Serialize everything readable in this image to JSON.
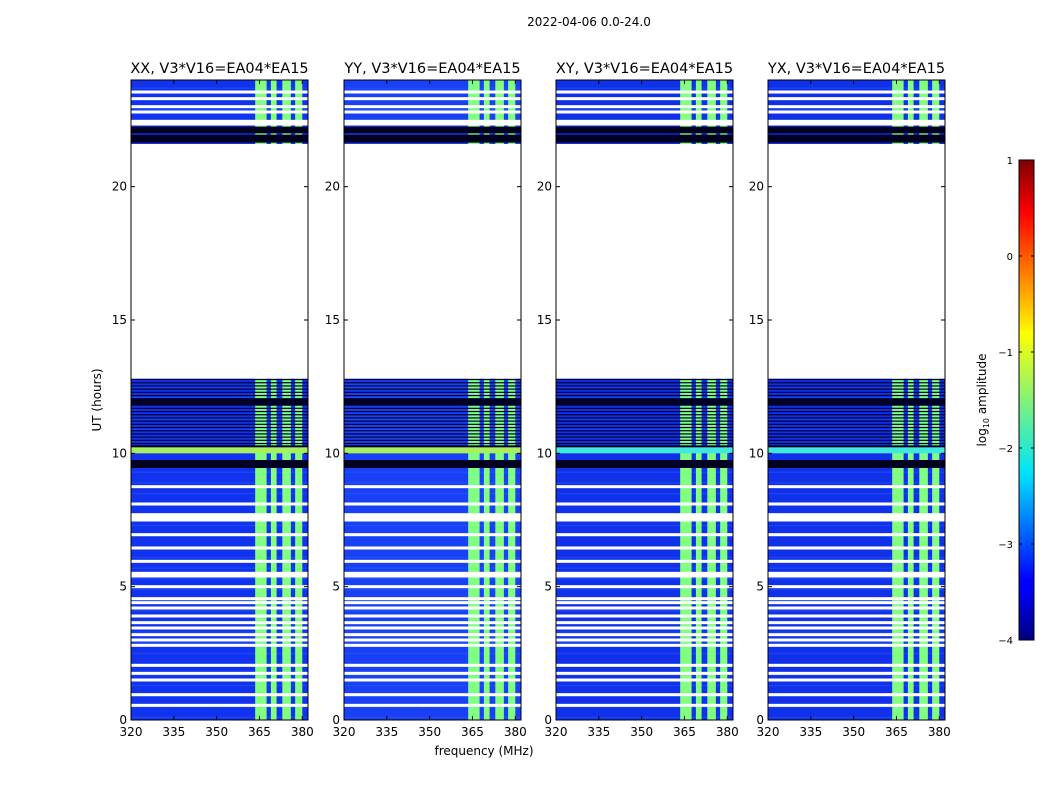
{
  "figure": {
    "suptitle": "2022-04-06 0.0-24.0",
    "xlabel": "frequency (MHz)",
    "ylabel": "UT (hours)"
  },
  "colorbar": {
    "label_prefix": "log",
    "label_sub": "10",
    "label_suffix": " amplitude",
    "range": [
      -4,
      1
    ],
    "ticks": [
      {
        "value": 1,
        "label": "1"
      },
      {
        "value": 0,
        "label": "0"
      },
      {
        "value": -1,
        "label": "−1"
      },
      {
        "value": -2,
        "label": "−2"
      },
      {
        "value": -3,
        "label": "−3"
      },
      {
        "value": -4,
        "label": "−4"
      }
    ]
  },
  "chart_data": {
    "type": "heatmap",
    "xlim": [
      320,
      382
    ],
    "ylim": [
      0,
      24
    ],
    "xticks": [
      {
        "value": 320,
        "label": "320"
      },
      {
        "value": 335,
        "label": "335"
      },
      {
        "value": 350,
        "label": "350"
      },
      {
        "value": 365,
        "label": "365"
      },
      {
        "value": 380,
        "label": "380"
      }
    ],
    "yticks": [
      {
        "value": 0,
        "label": "0"
      },
      {
        "value": 5,
        "label": "5"
      },
      {
        "value": 10,
        "label": "10"
      },
      {
        "value": 15,
        "label": "15"
      },
      {
        "value": 20,
        "label": "20"
      }
    ],
    "panels": [
      {
        "title": "XX, V3*V16=EA04*EA15",
        "background": "#1133f0",
        "baseline_log_amp": -2.9
      },
      {
        "title": "YY, V3*V16=EA04*EA15",
        "background": "#1a40f5",
        "baseline_log_amp": -2.8
      },
      {
        "title": "XY, V3*V16=EA04*EA15",
        "background": "#1030ea",
        "baseline_log_amp": -3.0
      },
      {
        "title": "YX, V3*V16=EA04*EA15",
        "background": "#1030ea",
        "baseline_log_amp": -3.0
      }
    ],
    "data_gap_hours": [
      12.8,
      21.6
    ],
    "rfi_bands_mhz": [
      [
        363.5,
        367.5
      ],
      [
        369,
        371
      ],
      [
        373,
        376
      ],
      [
        377.5,
        380
      ]
    ],
    "rfi_log_amp": -1.5,
    "flagged_hours": [
      0.55,
      0.95,
      1.5,
      1.75,
      2.05,
      2.8,
      3.0,
      3.2,
      3.45,
      3.65,
      3.9,
      4.2,
      4.4,
      4.55,
      5.0,
      5.4,
      5.5,
      5.95,
      6.45,
      6.95,
      7.5,
      7.6,
      7.7,
      8.1,
      8.75,
      22.35,
      22.45,
      22.8,
      23.0,
      23.3,
      23.55
    ],
    "dark_hours": [
      [
        9.45,
        9.75
      ],
      [
        10.25,
        10.3
      ],
      [
        11.8,
        12.05
      ],
      [
        21.65,
        21.95
      ],
      [
        22.0,
        22.25
      ]
    ],
    "bright_band_hours": [
      [
        10.0,
        10.25
      ]
    ]
  }
}
